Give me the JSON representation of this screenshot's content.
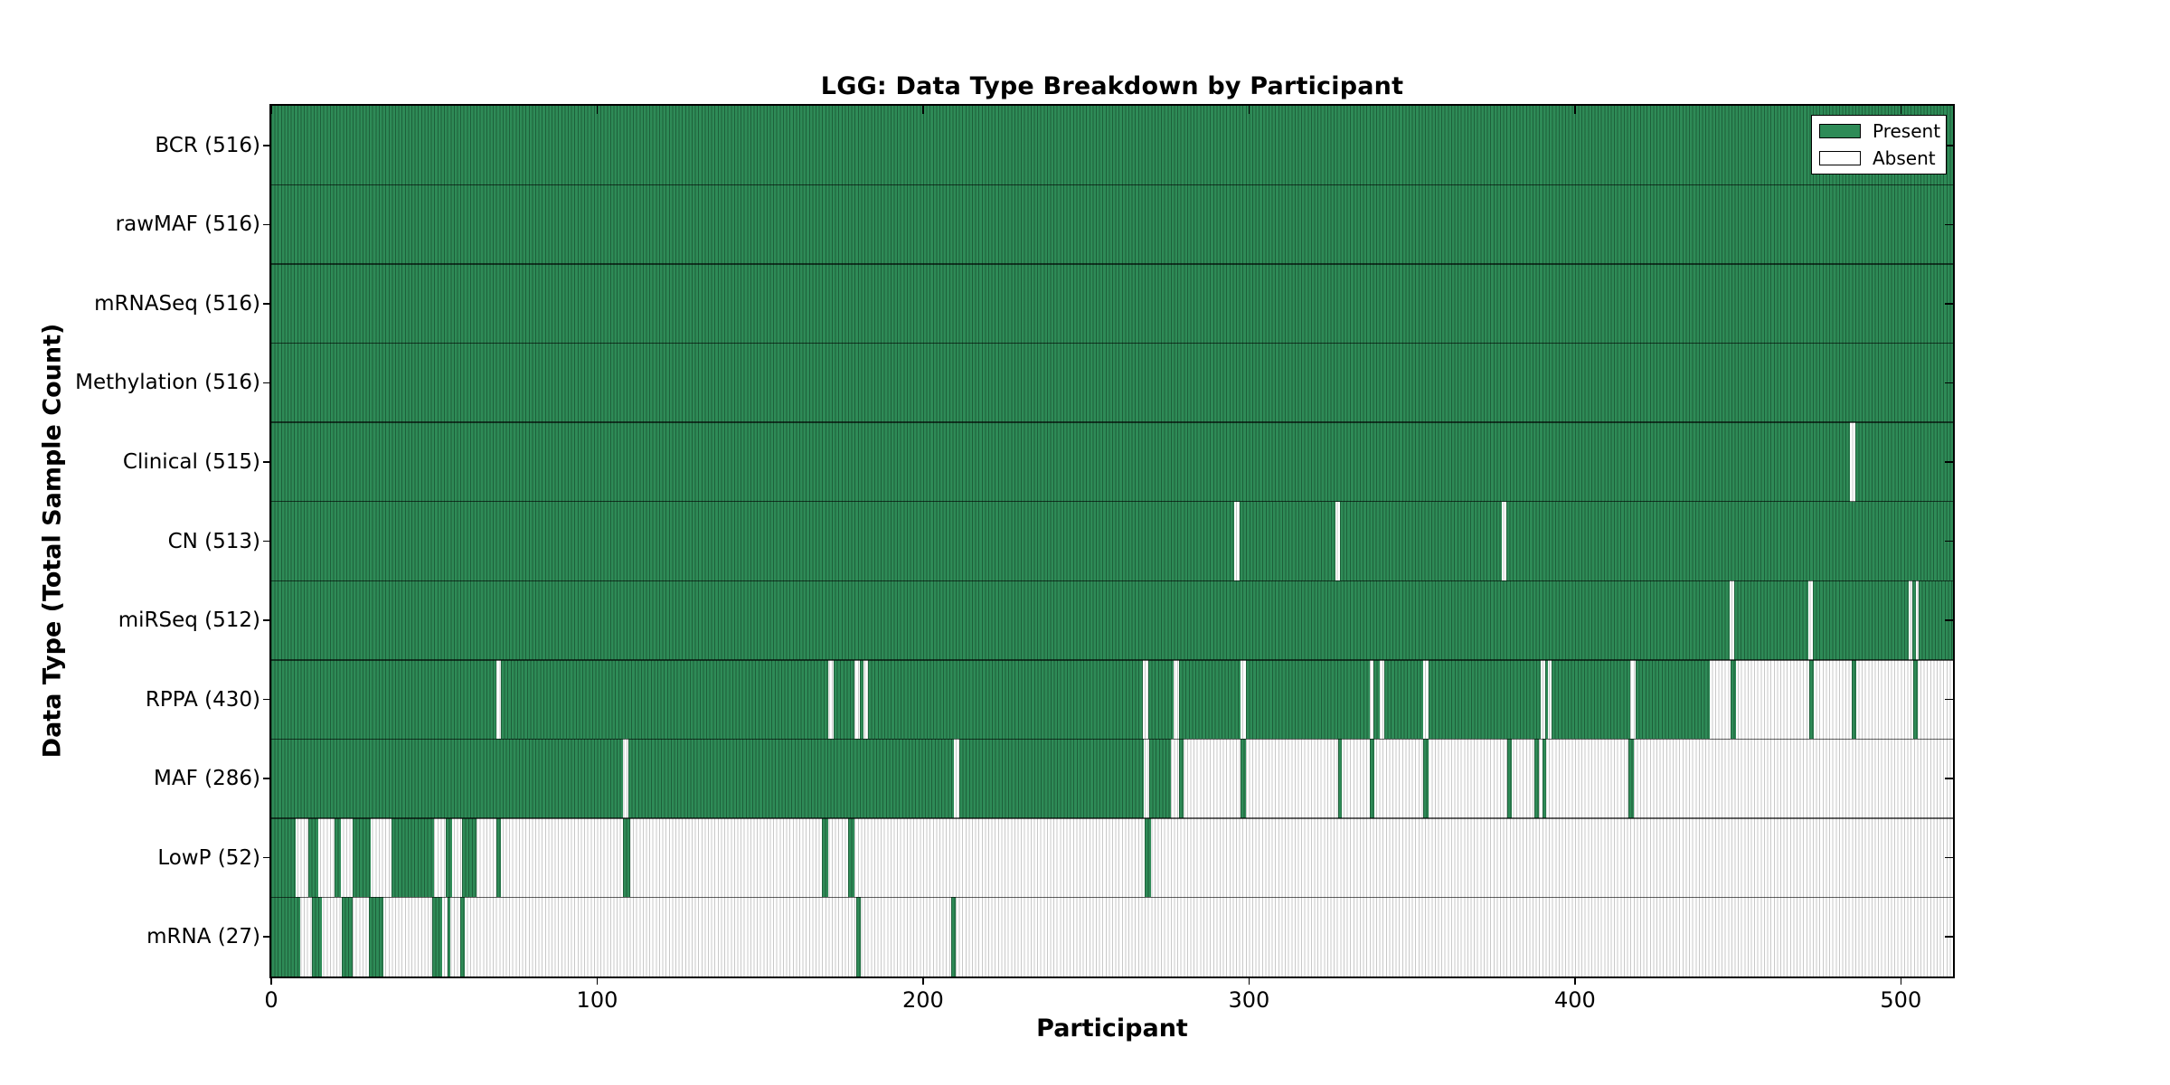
{
  "colors": {
    "present": "#2e8b57",
    "absent": "#ffffff",
    "absent_line": "#c8c8c8",
    "spine": "#000000"
  },
  "legend": {
    "present_label": "Present",
    "absent_label": "Absent"
  },
  "chart_data": {
    "type": "heatmap",
    "title": "LGG: Data Type Breakdown by Participant",
    "xlabel": "Participant",
    "ylabel": "Data Type (Total Sample Count)",
    "legend": [
      "Present",
      "Absent"
    ],
    "x_range": [
      0,
      516
    ],
    "x_ticks": [
      0,
      100,
      200,
      300,
      400,
      500
    ],
    "grid": false,
    "legend_position": "upper right",
    "value_encoding": "green = data type present for participant, white = absent",
    "rows": [
      {
        "name": "bcr",
        "label": "BCR (516)",
        "total": 516,
        "present_segments": [
          [
            0,
            516
          ]
        ]
      },
      {
        "name": "rawmaf",
        "label": "rawMAF (516)",
        "total": 516,
        "present_segments": [
          [
            0,
            516
          ]
        ]
      },
      {
        "name": "mrnaseq",
        "label": "mRNASeq (516)",
        "total": 516,
        "present_segments": [
          [
            0,
            516
          ]
        ]
      },
      {
        "name": "methylation",
        "label": "Methylation (516)",
        "total": 516,
        "present_segments": [
          [
            0,
            516
          ]
        ]
      },
      {
        "name": "clinical",
        "label": "Clinical (515)",
        "total": 515,
        "present_segments": [
          [
            0,
            484.5
          ],
          [
            486,
            516
          ]
        ]
      },
      {
        "name": "cn",
        "label": "CN (513)",
        "total": 513,
        "present_segments": [
          [
            0,
            295.5
          ],
          [
            297,
            326.5
          ],
          [
            328,
            377.5
          ],
          [
            379,
            516
          ]
        ]
      },
      {
        "name": "mirseq",
        "label": "miRSeq (512)",
        "total": 512,
        "present_segments": [
          [
            0,
            447.5
          ],
          [
            449,
            471.5
          ],
          [
            473,
            502.5
          ],
          [
            503.5,
            504.5
          ],
          [
            505.5,
            516
          ]
        ]
      },
      {
        "name": "rppa",
        "label": "RPPA (430)",
        "total": 430,
        "present_segments": [
          [
            0,
            69
          ],
          [
            70.5,
            171
          ],
          [
            172.5,
            179
          ],
          [
            180.5,
            181.8
          ],
          [
            183,
            267.5
          ],
          [
            269,
            277
          ],
          [
            278.5,
            297.5
          ],
          [
            299,
            337
          ],
          [
            338.3,
            340
          ],
          [
            341.5,
            353.5
          ],
          [
            355,
            389.5
          ],
          [
            390.8,
            391.6
          ],
          [
            392.8,
            417
          ],
          [
            418.5,
            441.5
          ],
          [
            447.8,
            449.3
          ],
          [
            471.8,
            473.3
          ],
          [
            484.8,
            486.3
          ],
          [
            503.8,
            505.3
          ]
        ]
      },
      {
        "name": "maf",
        "label": "MAF (286)",
        "total": 286,
        "present_segments": [
          [
            0,
            108
          ],
          [
            109.5,
            209.5
          ],
          [
            211,
            267.8
          ],
          [
            269.3,
            276
          ],
          [
            278.5,
            280
          ],
          [
            297.5,
            299
          ],
          [
            327.3,
            328.6
          ],
          [
            337,
            338.5
          ],
          [
            353.5,
            355
          ],
          [
            379.3,
            380.6
          ],
          [
            387.5,
            389
          ],
          [
            390,
            391.2
          ],
          [
            416.5,
            418
          ]
        ]
      },
      {
        "name": "lowp",
        "label": "LowP (52)",
        "total": 52,
        "present_segments": [
          [
            0,
            7.5
          ],
          [
            11.5,
            14.5
          ],
          [
            19.5,
            21.5
          ],
          [
            25,
            30.5
          ],
          [
            37,
            50
          ],
          [
            53.5,
            55.5
          ],
          [
            58.5,
            63
          ],
          [
            69,
            70.5
          ],
          [
            108,
            110
          ],
          [
            169,
            171
          ],
          [
            177,
            179
          ],
          [
            268,
            270
          ]
        ]
      },
      {
        "name": "mrna",
        "label": "mRNA (27)",
        "total": 27,
        "present_segments": [
          [
            0,
            9
          ],
          [
            12.5,
            15.5
          ],
          [
            21.5,
            25
          ],
          [
            30,
            34.5
          ],
          [
            49.5,
            52.5
          ],
          [
            54,
            55
          ],
          [
            58,
            59.5
          ],
          [
            179.5,
            181
          ],
          [
            208.5,
            210
          ]
        ]
      }
    ]
  }
}
